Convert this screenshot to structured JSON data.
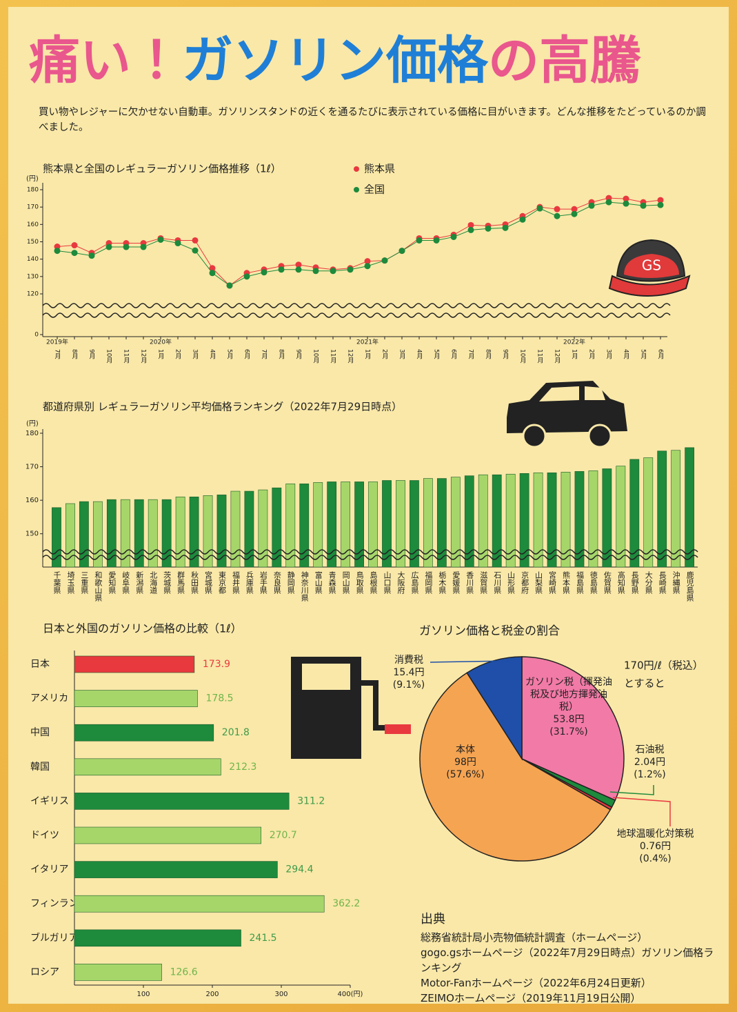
{
  "header": {
    "title_parts": [
      "痛い！",
      "ガソリン価格",
      "の高騰"
    ],
    "title_colors": [
      "#e9578d",
      "#1f7fd6",
      "#e9578d"
    ],
    "intro": "買い物やレジャーに欠かせない自動車。ガソリンスタンドの近くを通るたびに表示されている価格に目がいきます。どんな推移をたどっているのか調べました。",
    "cap_label": "GS"
  },
  "chart_data": [
    {
      "type": "line",
      "title": "熊本県と全国のレギュラーガソリン価格推移（1ℓ）",
      "unit": "(円)",
      "legend": "top-right",
      "categories": [
        "7月",
        "8月",
        "9月",
        "10月",
        "11月",
        "12月",
        "1月",
        "2月",
        "3月",
        "4月",
        "5月",
        "6月",
        "7月",
        "8月",
        "9月",
        "10月",
        "11月",
        "12月",
        "1月",
        "2月",
        "3月",
        "4月",
        "5月",
        "6月",
        "7月",
        "8月",
        "9月",
        "10月",
        "11月",
        "12月",
        "1月",
        "2月",
        "3月",
        "4月",
        "5月",
        "6月"
      ],
      "year_labels": [
        "2019年",
        null,
        null,
        null,
        null,
        null,
        "2020年",
        null,
        null,
        null,
        null,
        null,
        null,
        null,
        null,
        null,
        null,
        null,
        "2021年",
        null,
        null,
        null,
        null,
        null,
        null,
        null,
        null,
        null,
        null,
        null,
        "2022年",
        null,
        null,
        null,
        null,
        null
      ],
      "series": [
        {
          "name": "熊本県",
          "color": "#e8393f",
          "values": [
            147.2,
            148,
            143.6,
            149.2,
            149.2,
            149.2,
            152,
            150.8,
            150.8,
            134.8,
            124.8,
            132,
            134,
            136,
            136.8,
            135.2,
            134,
            134.8,
            138.8,
            139.2,
            144.8,
            152,
            152,
            154,
            159.6,
            159.2,
            160,
            164.8,
            170,
            168.8,
            168.8,
            172.8,
            175.2,
            174.8,
            172.8,
            174
          ]
        },
        {
          "name": "全国",
          "color": "#1d8a3c",
          "values": [
            144.8,
            143.6,
            142,
            147,
            147,
            147,
            151.2,
            149.2,
            145,
            132,
            124.8,
            130,
            132.4,
            134,
            134,
            133.2,
            133.2,
            134,
            136,
            139.2,
            144.8,
            150.8,
            150.8,
            152.8,
            156.8,
            157.6,
            158,
            162.8,
            169.2,
            164.8,
            166,
            170.8,
            172.8,
            172,
            170.8,
            171.2
          ]
        }
      ],
      "ylim": [
        0,
        180
      ],
      "axis_break": [
        0,
        120
      ],
      "yticks": [
        0,
        120,
        130,
        140,
        150,
        160,
        170,
        180
      ]
    },
    {
      "type": "bar",
      "title": "都道府県別 レギュラーガソリン平均価格ランキング（2022年7月29日時点）",
      "unit": "(円)",
      "categories": [
        "千葉県",
        "埼玉県",
        "三重県",
        "和歌山県",
        "愛知県",
        "岐阜県",
        "新潟県",
        "北海道",
        "茨城県",
        "群馬県",
        "秋田県",
        "宮城県",
        "東京都",
        "福井県",
        "兵庫県",
        "岩手県",
        "奈良県",
        "静岡県",
        "神奈川県",
        "富山県",
        "青森県",
        "岡山県",
        "鳥取県",
        "島根県",
        "山口県",
        "大阪府",
        "広島県",
        "福岡県",
        "栃木県",
        "愛媛県",
        "香川県",
        "滋賀県",
        "石川県",
        "山形県",
        "京都府",
        "山梨県",
        "宮崎県",
        "熊本県",
        "福島県",
        "徳島県",
        "佐賀県",
        "高知県",
        "長野県",
        "大分県",
        "長崎県",
        "沖縄県",
        "鹿児島県"
      ],
      "values": [
        157.8,
        159,
        159.6,
        159.6,
        160.2,
        160.2,
        160.2,
        160.2,
        160.2,
        161,
        161,
        161.4,
        161.6,
        162.7,
        162.7,
        163.1,
        163.7,
        164.9,
        164.9,
        165.3,
        165.5,
        165.5,
        165.5,
        165.5,
        165.9,
        165.9,
        165.9,
        166.5,
        166.5,
        166.9,
        167.3,
        167.6,
        167.6,
        167.8,
        168,
        168.2,
        168.2,
        168.4,
        168.6,
        168.8,
        169.4,
        170.2,
        172.2,
        172.7,
        174.7,
        174.9,
        175.7
      ],
      "colors": [
        "#1d8a3c",
        "#a6d66a"
      ],
      "ylim": [
        145,
        180
      ],
      "yticks": [
        150,
        160,
        170,
        180
      ]
    },
    {
      "type": "hbar",
      "title": "日本と外国のガソリン価格の比較（1ℓ）",
      "categories": [
        "日本",
        "アメリカ",
        "中国",
        "韓国",
        "イギリス",
        "ドイツ",
        "イタリア",
        "フィンランド",
        "ブルガリア",
        "ロシア"
      ],
      "values": [
        173.9,
        178.5,
        201.8,
        212.3,
        311.2,
        270.7,
        294.4,
        362.2,
        241.5,
        126.6
      ],
      "colors": [
        "#e8393f",
        "#a6d66a",
        "#1d8a3c",
        "#a6d66a",
        "#1d8a3c",
        "#a6d66a",
        "#1d8a3c",
        "#a6d66a",
        "#1d8a3c",
        "#a6d66a"
      ],
      "label_colors": [
        "#e8393f",
        "#6fb44a",
        "#3f9a4a",
        "#6fb44a",
        "#3f9a4a",
        "#6fb44a",
        "#3f9a4a",
        "#6fb44a",
        "#3f9a4a",
        "#6fb44a"
      ],
      "xlim": [
        0,
        400
      ],
      "xticks": [
        100,
        200,
        300,
        {
          "value": 400,
          "label": "400(円)"
        }
      ]
    },
    {
      "type": "pie",
      "title": "ガソリン価格と税金の割合",
      "annotation": [
        "170円/ℓ（税込）",
        "とすると"
      ],
      "labels": [
        "ガソリン税（揮発油税及び地方揮発油税）",
        "石油税",
        "地球温暖化対策税",
        "本体",
        "消費税"
      ],
      "values": [
        53.8,
        2.04,
        0.76,
        98,
        15.4
      ],
      "value_labels": [
        "53.8円",
        "2.04円",
        "0.76円",
        "98円",
        "15.4円"
      ],
      "percent_labels": [
        "(31.7%)",
        "(1.2%)",
        "(0.4%)",
        "(57.6%)",
        "(9.1%)"
      ],
      "colors": [
        "#f27aa6",
        "#1d8a3c",
        "#e8393f",
        "#f5a452",
        "#1f4fa8"
      ]
    }
  ],
  "sources": {
    "heading": "出典",
    "items": [
      "総務省統計局小売物価統計調査（ホームページ）",
      "gogo.gsホームページ（2022年7月29日時点）ガソリン価格ランキング",
      "Motor-Fanホームページ（2022年6月24日更新）",
      "ZEIMOホームページ（2019年11月19日公開）"
    ]
  }
}
